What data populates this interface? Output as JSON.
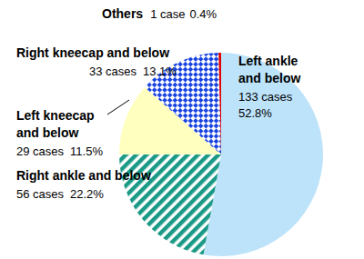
{
  "chart_data": {
    "type": "pie",
    "categories": [
      "Left ankle and below",
      "Right ankle and below",
      "Left kneecap and below",
      "Right kneecap and below",
      "Others"
    ],
    "values": [
      133,
      56,
      29,
      33,
      1
    ],
    "value_labels": [
      "133 cases 52.8%",
      "56 cases 22.2%",
      "29 cases 11.5%",
      "33 cases 13.1%",
      "1 case 0.4%"
    ],
    "colors": [
      "#bde3fa",
      "#1a9a86",
      "#ffffc0",
      "#1a44e0",
      "#e00000"
    ],
    "data_labels": true
  }
}
